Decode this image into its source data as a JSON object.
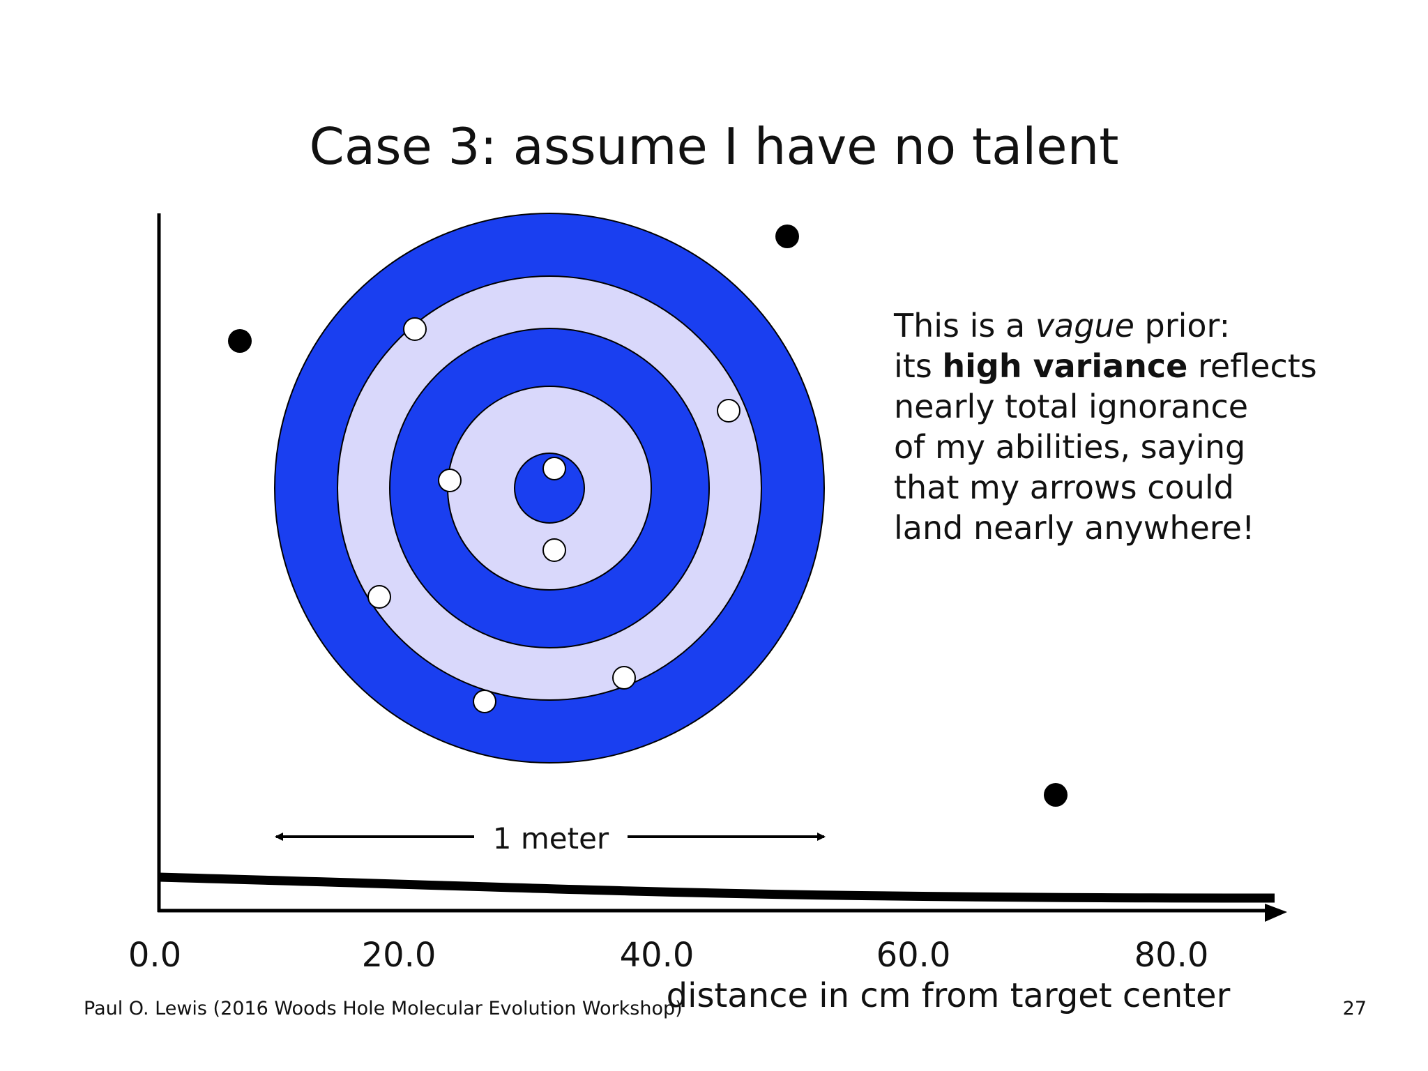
{
  "slide": {
    "title": "Case 3: assume I have no talent",
    "footer": "Paul O. Lewis (2016 Woods Hole Molecular Evolution Workshop)",
    "page_number": "27"
  },
  "note": {
    "line1_pre": "This is a ",
    "line1_em": "vague",
    "line1_post": " prior:",
    "line2_pre": "its ",
    "line2_bold": "high variance",
    "line2_post": " reflects",
    "line3": "nearly total ignorance",
    "line4": "of my abilities, saying",
    "line5": "that my arrows could",
    "line6": "land nearly anywhere!"
  },
  "scale_bar": {
    "label": "1 meter"
  },
  "axis": {
    "xlabel": "distance in cm from target center",
    "ticks": [
      "0.0",
      "20.0",
      "40.0",
      "60.0",
      "80.0"
    ]
  },
  "colors": {
    "ring_dark": "#1a3ff0",
    "ring_light": "#d9d8fb",
    "arrow_hit": "#ffffff",
    "arrow_miss": "#000000"
  }
}
